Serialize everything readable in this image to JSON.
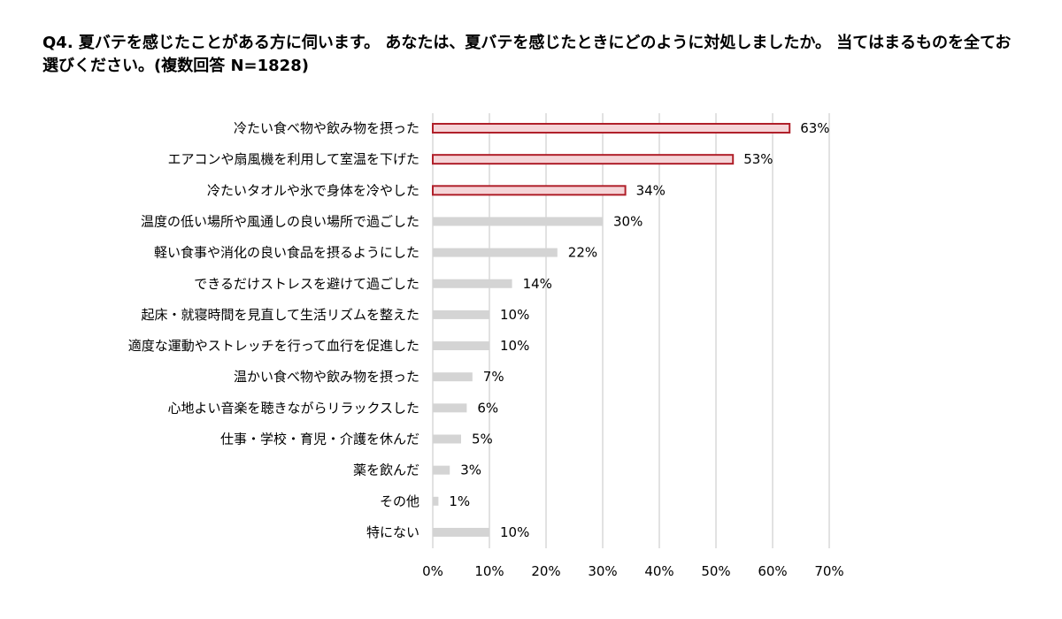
{
  "title": "Q4. 夏バテを感じたことがある方に伺います。 あなたは、夏バテを感じたときにどのように対処しましたか。 当てはまるものを全てお選びください。(複数回答 N=1828)",
  "colors": {
    "highlight_fill": "#f5d5d8",
    "highlight_stroke": "#b0202a",
    "normal_bar": "#d4d4d4",
    "grid": "#d9d9d9"
  },
  "chart_data": {
    "type": "bar",
    "orientation": "horizontal",
    "categories": [
      "冷たい食べ物や飲み物を摂った",
      "エアコンや扇風機を利用して室温を下げた",
      "冷たいタオルや氷で身体を冷やした",
      "温度の低い場所や風通しの良い場所で過ごした",
      "軽い食事や消化の良い食品を摂るようにした",
      "できるだけストレスを避けて過ごした",
      "起床・就寝時間を見直して生活リズムを整えた",
      "適度な運動やストレッチを行って血行を促進した",
      "温かい食べ物や飲み物を摂った",
      "心地よい音楽を聴きながらリラックスした",
      "仕事・学校・育児・介護を休んだ",
      "薬を飲んだ",
      "その他",
      "特にない"
    ],
    "values": [
      63,
      53,
      34,
      30,
      22,
      14,
      10,
      10,
      7,
      6,
      5,
      3,
      1,
      10
    ],
    "value_labels": [
      "63%",
      "53%",
      "34%",
      "30%",
      "22%",
      "14%",
      "10%",
      "10%",
      "7%",
      "6%",
      "5%",
      "3%",
      "1%",
      "10%"
    ],
    "highlighted": [
      true,
      true,
      true,
      false,
      false,
      false,
      false,
      false,
      false,
      false,
      false,
      false,
      false,
      false
    ],
    "xlim": [
      0,
      70
    ],
    "xticks": [
      "0%",
      "10%",
      "20%",
      "30%",
      "40%",
      "50%",
      "60%",
      "70%"
    ],
    "grid": true
  }
}
